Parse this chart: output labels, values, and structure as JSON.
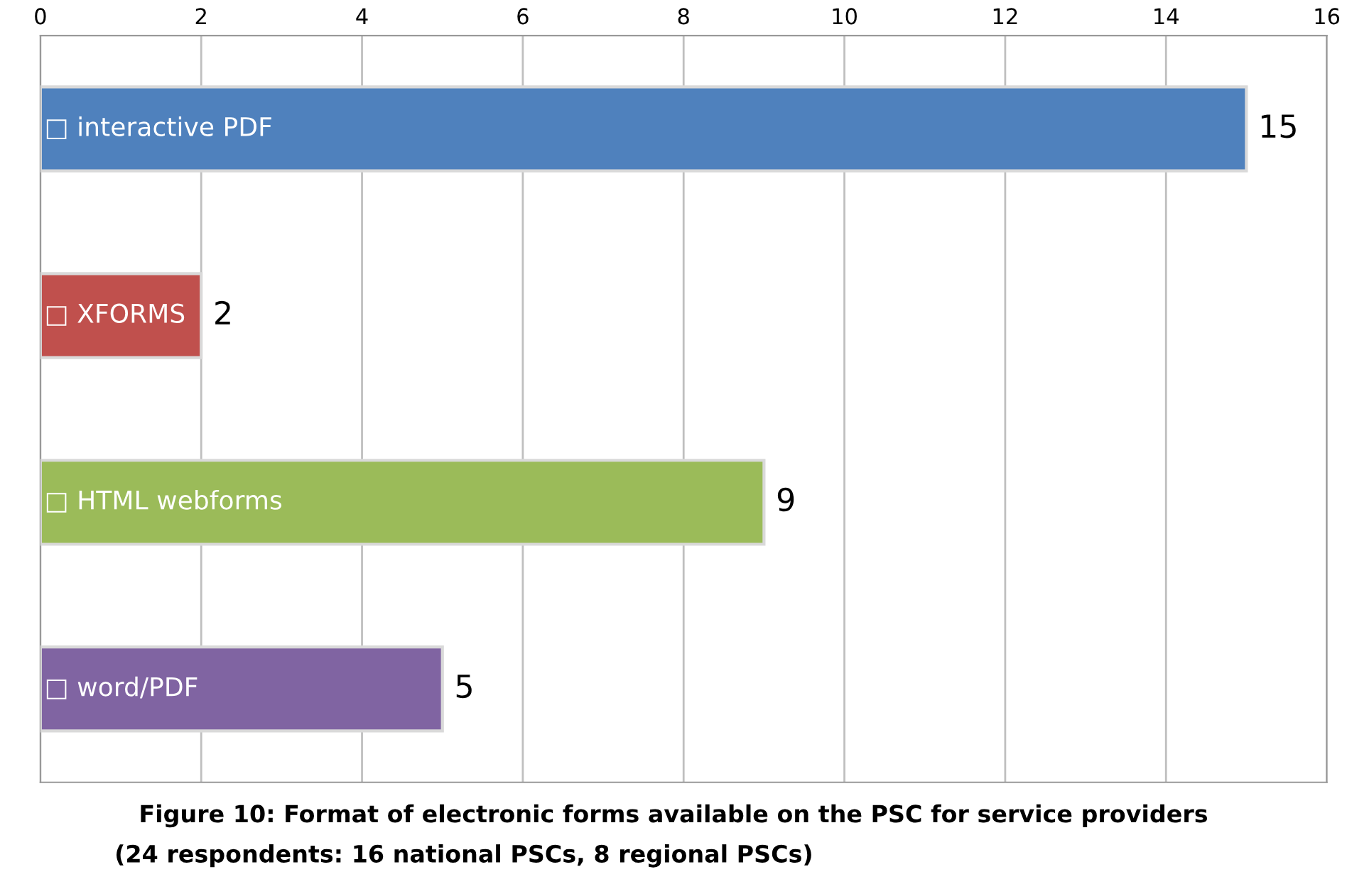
{
  "chart_data": {
    "type": "bar",
    "orientation": "horizontal",
    "title": "Figure 10: Format of electronic forms available on the PSC for service providers",
    "subtitle": "(24 respondents: 16 national PSCs, 8 regional PSCs)",
    "categories": [
      "□ interactive PDF",
      "□ XFORMS",
      "□ HTML webforms",
      "□ word/PDF"
    ],
    "values": [
      15,
      2,
      9,
      5
    ],
    "colors": [
      "#4f81bd",
      "#c0504d",
      "#9bbb59",
      "#8064a2"
    ],
    "xlim": [
      0,
      16
    ],
    "xticks": [
      0,
      2,
      4,
      6,
      8,
      10,
      12,
      14,
      16
    ],
    "grid": "x",
    "data_labels": true
  }
}
